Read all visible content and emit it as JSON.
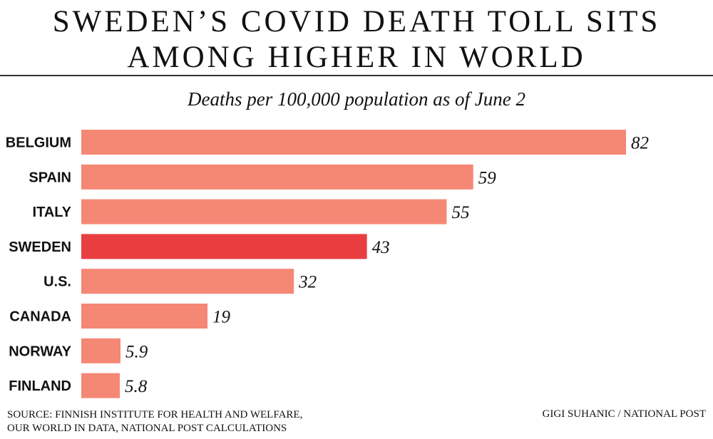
{
  "headline": {
    "line1": "SWEDEN’S COVID DEATH TOLL SITS",
    "line2": "AMONG HIGHER IN WORLD"
  },
  "chart_data": {
    "type": "bar",
    "orientation": "horizontal",
    "title": "SWEDEN’S COVID DEATH TOLL SITS AMONG HIGHER IN WORLD",
    "subtitle": "Deaths per 100,000 population as of June 2",
    "categories": [
      "BELGIUM",
      "SPAIN",
      "ITALY",
      "SWEDEN",
      "U.S.",
      "CANADA",
      "NORWAY",
      "FINLAND"
    ],
    "values": [
      82,
      59,
      55,
      43,
      32,
      19,
      5.9,
      5.8
    ],
    "value_labels": [
      "82",
      "59",
      "55",
      "43",
      "32",
      "19",
      "5.9",
      "5.8"
    ],
    "highlight": "SWEDEN",
    "xlabel": "",
    "ylabel": "",
    "xlim": [
      0,
      82
    ],
    "grid": false,
    "colors": {
      "bar": "#f58775",
      "highlight": "#e93e40"
    }
  },
  "footer": {
    "source_line1": "SOURCE: FINNISH INSTITUTE FOR HEALTH AND WELFARE,",
    "source_line2": "OUR WORLD IN DATA, NATIONAL POST CALCULATIONS",
    "credit": "GIGI SUHANIC / NATIONAL POST"
  }
}
